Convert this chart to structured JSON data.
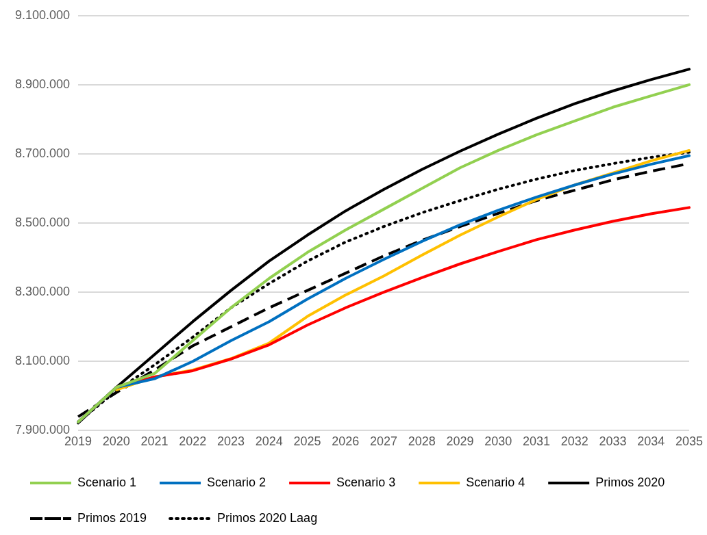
{
  "chart_data": {
    "type": "line",
    "categories": [
      "2019",
      "2020",
      "2021",
      "2022",
      "2023",
      "2024",
      "2025",
      "2026",
      "2027",
      "2028",
      "2029",
      "2030",
      "2031",
      "2032",
      "2033",
      "2034",
      "2035"
    ],
    "ylim": [
      7900000,
      9100000
    ],
    "yticks": [
      {
        "value": 7900000,
        "label": "7.900.000"
      },
      {
        "value": 8100000,
        "label": "8.100.000"
      },
      {
        "value": 8300000,
        "label": "8.300.000"
      },
      {
        "value": 8500000,
        "label": "8.500.000"
      },
      {
        "value": 8700000,
        "label": "8.700.000"
      },
      {
        "value": 8900000,
        "label": "8.900.000"
      },
      {
        "value": 9100000,
        "label": "9.100.000"
      }
    ],
    "grid": "y",
    "legend": "bottom",
    "marker": "none",
    "series": [
      {
        "name": "Scenario 1",
        "color": "#92d050",
        "line_style": "solid",
        "values": [
          7925000,
          8025000,
          8065000,
          8160000,
          8255000,
          8340000,
          8415000,
          8480000,
          8540000,
          8600000,
          8660000,
          8710000,
          8755000,
          8795000,
          8835000,
          8868000,
          8900000
        ]
      },
      {
        "name": "Scenario 2",
        "color": "#0070c0",
        "line_style": "solid",
        "values": [
          7925000,
          8025000,
          8050000,
          8100000,
          8160000,
          8215000,
          8280000,
          8340000,
          8395000,
          8447000,
          8495000,
          8537000,
          8575000,
          8610000,
          8642000,
          8670000,
          8695000
        ]
      },
      {
        "name": "Scenario 3",
        "color": "#ff0000",
        "line_style": "solid",
        "values": [
          7925000,
          8025000,
          8055000,
          8073000,
          8107000,
          8148000,
          8205000,
          8255000,
          8300000,
          8342000,
          8382000,
          8418000,
          8452000,
          8480000,
          8505000,
          8527000,
          8545000
        ]
      },
      {
        "name": "Scenario 4",
        "color": "#ffc000",
        "line_style": "solid",
        "values": [
          null,
          8018000,
          8055000,
          8075000,
          8108000,
          8153000,
          8230000,
          8292000,
          8347000,
          8407000,
          8465000,
          8518000,
          8568000,
          8610000,
          8645000,
          8680000,
          8710000
        ]
      },
      {
        "name": "Primos 2020",
        "color": "#000000",
        "line_style": "solid",
        "values": [
          7922000,
          8025000,
          8120000,
          8215000,
          8305000,
          8390000,
          8465000,
          8535000,
          8597000,
          8655000,
          8708000,
          8757000,
          8803000,
          8845000,
          8882000,
          8915000,
          8945000
        ]
      },
      {
        "name": "Primos 2019",
        "color": "#000000",
        "line_style": "dashed",
        "values": [
          7940000,
          8010000,
          8075000,
          8145000,
          8200000,
          8255000,
          8305000,
          8355000,
          8405000,
          8450000,
          8490000,
          8528000,
          8565000,
          8595000,
          8625000,
          8650000,
          8672000
        ]
      },
      {
        "name": "Primos 2020 Laag",
        "color": "#000000",
        "line_style": "dotted",
        "values": [
          7925000,
          8015000,
          8090000,
          8170000,
          8255000,
          8325000,
          8390000,
          8445000,
          8490000,
          8530000,
          8565000,
          8598000,
          8627000,
          8652000,
          8672000,
          8690000,
          8705000
        ]
      }
    ]
  }
}
